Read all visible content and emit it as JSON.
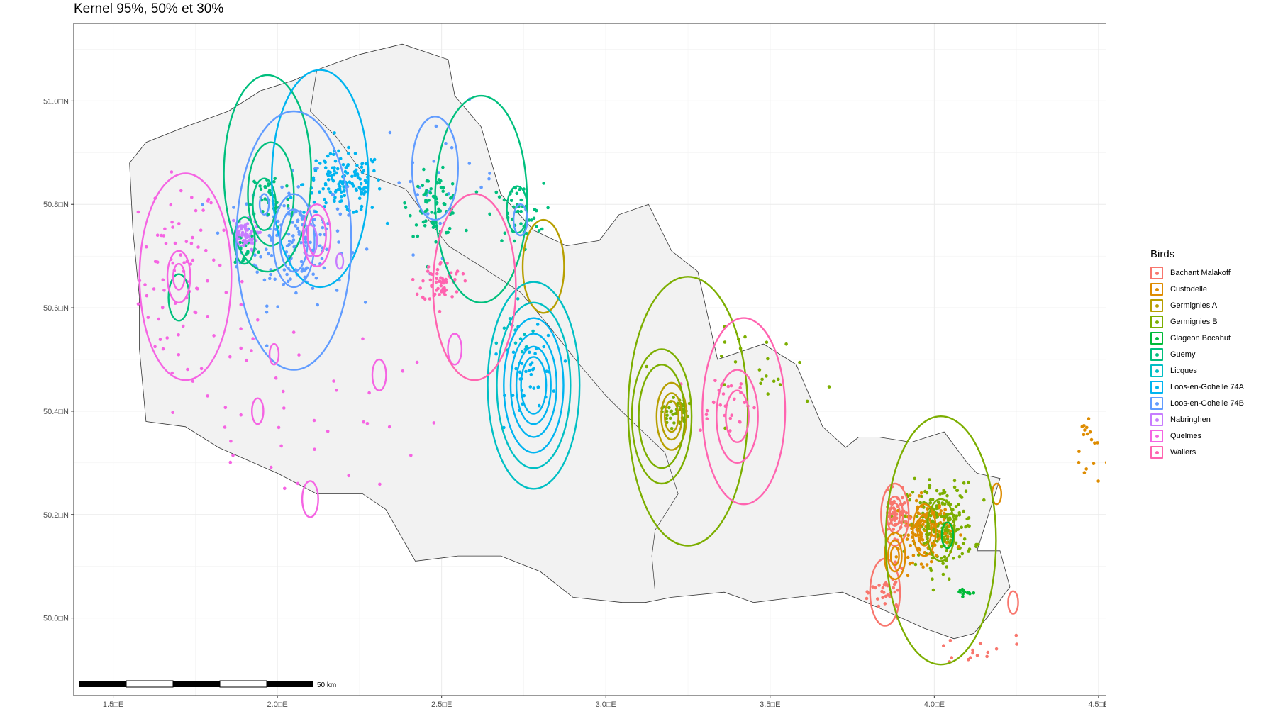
{
  "title": "Kernel 95%, 50% et 30%",
  "axes": {
    "x_ticks": [
      {
        "value": 1.5,
        "label": "1.5□E"
      },
      {
        "value": 2.0,
        "label": "2.0□E"
      },
      {
        "value": 2.5,
        "label": "2.5□E"
      },
      {
        "value": 3.0,
        "label": "3.0□E"
      },
      {
        "value": 3.5,
        "label": "3.5□E"
      },
      {
        "value": 4.0,
        "label": "4.0□E"
      },
      {
        "value": 4.5,
        "label": "4.5□E"
      }
    ],
    "y_ticks": [
      {
        "value": 50.0,
        "label": "50.0□N"
      },
      {
        "value": 50.2,
        "label": "50.2□N"
      },
      {
        "value": 50.4,
        "label": "50.4□N"
      },
      {
        "value": 50.6,
        "label": "50.6□N"
      },
      {
        "value": 50.8,
        "label": "50.8□N"
      },
      {
        "value": 51.0,
        "label": "51.0□N"
      }
    ],
    "xlim": [
      1.38,
      4.66
    ],
    "ylim": [
      49.85,
      51.15
    ],
    "grid": true
  },
  "legend": {
    "title": "Birds",
    "items": [
      {
        "name": "Bachant Malakoff",
        "color": "#F8766D"
      },
      {
        "name": "Custodelle",
        "color": "#DE8C00"
      },
      {
        "name": "Germignies A",
        "color": "#B79F00"
      },
      {
        "name": "Germignies B",
        "color": "#7CAE00"
      },
      {
        "name": "Glageon Bocahut",
        "color": "#00BA38"
      },
      {
        "name": "Guemy",
        "color": "#00BF7D"
      },
      {
        "name": "Licques",
        "color": "#00BFC4"
      },
      {
        "name": "Loos-en-Gohelle 74A",
        "color": "#00B4F0"
      },
      {
        "name": "Loos-en-Gohelle 74B",
        "color": "#619CFF"
      },
      {
        "name": "Nabringhen",
        "color": "#C77CFF"
      },
      {
        "name": "Quelmes",
        "color": "#F564E3"
      },
      {
        "name": "Wallers",
        "color": "#FF64B0"
      }
    ]
  },
  "scale_bar": {
    "label": "50 km"
  },
  "region_outline": [
    [
      1.55,
      50.88
    ],
    [
      1.6,
      50.92
    ],
    [
      1.72,
      50.95
    ],
    [
      1.85,
      50.98
    ],
    [
      1.95,
      51.02
    ],
    [
      2.05,
      51.04
    ],
    [
      2.12,
      51.06
    ],
    [
      2.25,
      51.09
    ],
    [
      2.38,
      51.11
    ],
    [
      2.52,
      51.08
    ],
    [
      2.54,
      51.01
    ],
    [
      2.62,
      50.95
    ],
    [
      2.68,
      50.82
    ],
    [
      2.78,
      50.75
    ],
    [
      2.88,
      50.72
    ],
    [
      2.98,
      50.73
    ],
    [
      3.04,
      50.78
    ],
    [
      3.13,
      50.8
    ],
    [
      3.2,
      50.71
    ],
    [
      3.28,
      50.67
    ],
    [
      3.34,
      50.5
    ],
    [
      3.48,
      50.53
    ],
    [
      3.58,
      50.49
    ],
    [
      3.66,
      50.37
    ],
    [
      3.73,
      50.33
    ],
    [
      3.77,
      50.35
    ],
    [
      3.83,
      50.35
    ],
    [
      3.93,
      50.34
    ],
    [
      4.03,
      50.36
    ],
    [
      4.1,
      50.3
    ],
    [
      4.13,
      50.28
    ],
    [
      4.2,
      50.27
    ],
    [
      4.16,
      50.19
    ],
    [
      4.13,
      50.13
    ],
    [
      4.2,
      50.13
    ],
    [
      4.23,
      50.06
    ],
    [
      4.16,
      50.0
    ],
    [
      4.12,
      49.97
    ],
    [
      4.06,
      49.96
    ],
    [
      3.97,
      49.98
    ],
    [
      3.83,
      50.02
    ],
    [
      3.72,
      50.05
    ],
    [
      3.58,
      50.04
    ],
    [
      3.45,
      50.03
    ],
    [
      3.36,
      50.05
    ],
    [
      3.2,
      50.04
    ],
    [
      3.12,
      50.03
    ],
    [
      3.05,
      50.03
    ],
    [
      2.9,
      50.04
    ],
    [
      2.8,
      50.09
    ],
    [
      2.68,
      50.12
    ],
    [
      2.55,
      50.12
    ],
    [
      2.42,
      50.11
    ],
    [
      2.33,
      50.21
    ],
    [
      2.26,
      50.24
    ],
    [
      2.12,
      50.24
    ],
    [
      2.0,
      50.28
    ],
    [
      1.82,
      50.33
    ],
    [
      1.72,
      50.37
    ],
    [
      1.6,
      50.38
    ],
    [
      1.58,
      50.52
    ],
    [
      1.58,
      50.62
    ],
    [
      1.56,
      50.75
    ],
    [
      1.55,
      50.88
    ]
  ],
  "inner_border": [
    [
      2.12,
      51.06
    ],
    [
      2.1,
      50.98
    ],
    [
      2.18,
      50.93
    ],
    [
      2.26,
      50.86
    ],
    [
      2.39,
      50.83
    ],
    [
      2.52,
      50.72
    ],
    [
      2.62,
      50.68
    ],
    [
      2.74,
      50.63
    ],
    [
      2.82,
      50.57
    ],
    [
      2.92,
      50.49
    ],
    [
      3.0,
      50.43
    ],
    [
      3.08,
      50.38
    ],
    [
      3.18,
      50.32
    ],
    [
      3.22,
      50.24
    ],
    [
      3.15,
      50.17
    ],
    [
      3.14,
      50.12
    ],
    [
      3.15,
      50.05
    ]
  ],
  "kernels": [
    {
      "bird": "Bachant Malakoff",
      "rings": [
        {
          "cx": 3.88,
          "cy": 50.2,
          "r": 0.06
        },
        {
          "cx": 3.88,
          "cy": 50.2,
          "r": 0.035
        },
        {
          "cx": 3.88,
          "cy": 50.2,
          "r": 0.022
        },
        {
          "cx": 3.85,
          "cy": 50.05,
          "r": 0.065
        },
        {
          "cx": 4.24,
          "cy": 50.03,
          "r": 0.022
        }
      ]
    },
    {
      "bird": "Custodelle",
      "rings": [
        {
          "cx": 3.88,
          "cy": 50.12,
          "r": 0.045
        },
        {
          "cx": 3.88,
          "cy": 50.12,
          "r": 0.03
        },
        {
          "cx": 3.88,
          "cy": 50.12,
          "r": 0.018
        },
        {
          "cx": 3.97,
          "cy": 50.17,
          "r": 0.05
        },
        {
          "cx": 3.97,
          "cy": 50.17,
          "r": 0.03
        },
        {
          "cx": 4.19,
          "cy": 50.24,
          "r": 0.02
        }
      ]
    },
    {
      "bird": "Germignies A",
      "rings": [
        {
          "cx": 3.2,
          "cy": 50.39,
          "r": 0.065
        },
        {
          "cx": 3.2,
          "cy": 50.39,
          "r": 0.045
        },
        {
          "cx": 3.2,
          "cy": 50.39,
          "r": 0.03
        },
        {
          "cx": 2.81,
          "cy": 50.68,
          "r": 0.09
        }
      ]
    },
    {
      "bird": "Germignies B",
      "rings": [
        {
          "cx": 3.25,
          "cy": 50.4,
          "r": 0.26
        },
        {
          "cx": 3.17,
          "cy": 50.39,
          "r": 0.13
        },
        {
          "cx": 3.17,
          "cy": 50.39,
          "r": 0.1
        },
        {
          "cx": 4.02,
          "cy": 50.15,
          "r": 0.24
        },
        {
          "cx": 4.02,
          "cy": 50.17,
          "r": 0.06
        }
      ]
    },
    {
      "bird": "Glageon Bocahut",
      "rings": [
        {
          "cx": 4.04,
          "cy": 50.16,
          "r": 0.025
        }
      ]
    },
    {
      "bird": "Guemy",
      "rings": [
        {
          "cx": 1.97,
          "cy": 50.86,
          "r": 0.19
        },
        {
          "cx": 1.98,
          "cy": 50.82,
          "r": 0.1
        },
        {
          "cx": 1.96,
          "cy": 50.8,
          "r": 0.05
        },
        {
          "cx": 2.62,
          "cy": 50.81,
          "r": 0.2
        },
        {
          "cx": 2.73,
          "cy": 50.79,
          "r": 0.045
        },
        {
          "cx": 1.7,
          "cy": 50.62,
          "r": 0.045
        },
        {
          "cx": 1.9,
          "cy": 50.73,
          "r": 0.045
        }
      ]
    },
    {
      "bird": "Licques",
      "rings": [
        {
          "cx": 2.78,
          "cy": 50.45,
          "r": 0.2
        },
        {
          "cx": 2.78,
          "cy": 50.45,
          "r": 0.16
        }
      ]
    },
    {
      "bird": "Loos-en-Gohelle 74A",
      "rings": [
        {
          "cx": 2.78,
          "cy": 50.45,
          "r": 0.13
        },
        {
          "cx": 2.78,
          "cy": 50.45,
          "r": 0.1
        },
        {
          "cx": 2.78,
          "cy": 50.45,
          "r": 0.075
        },
        {
          "cx": 2.78,
          "cy": 50.45,
          "r": 0.055
        },
        {
          "cx": 2.13,
          "cy": 50.85,
          "r": 0.21
        }
      ]
    },
    {
      "bird": "Loos-en-Gohelle 74B",
      "rings": [
        {
          "cx": 2.05,
          "cy": 50.73,
          "r": 0.25
        },
        {
          "cx": 2.05,
          "cy": 50.73,
          "r": 0.09
        },
        {
          "cx": 2.05,
          "cy": 50.73,
          "r": 0.06
        },
        {
          "cx": 2.48,
          "cy": 50.87,
          "r": 0.1
        },
        {
          "cx": 2.74,
          "cy": 50.77,
          "r": 0.03
        },
        {
          "cx": 1.96,
          "cy": 50.8,
          "r": 0.02
        }
      ]
    },
    {
      "bird": "Nabringhen",
      "rings": [
        {
          "cx": 1.89,
          "cy": 50.74,
          "r": 0.02
        },
        {
          "cx": 2.19,
          "cy": 50.69,
          "r": 0.015
        },
        {
          "cx": 2.1,
          "cy": 50.73,
          "r": 0.03
        }
      ]
    },
    {
      "bird": "Quelmes",
      "rings": [
        {
          "cx": 1.72,
          "cy": 50.66,
          "r": 0.2
        },
        {
          "cx": 1.7,
          "cy": 50.66,
          "r": 0.05
        },
        {
          "cx": 1.7,
          "cy": 50.66,
          "r": 0.025
        },
        {
          "cx": 2.12,
          "cy": 50.74,
          "r": 0.06
        },
        {
          "cx": 2.12,
          "cy": 50.74,
          "r": 0.04
        },
        {
          "cx": 1.99,
          "cy": 50.51,
          "r": 0.02
        },
        {
          "cx": 2.31,
          "cy": 50.47,
          "r": 0.03
        },
        {
          "cx": 1.94,
          "cy": 50.4,
          "r": 0.025
        },
        {
          "cx": 2.1,
          "cy": 50.23,
          "r": 0.035
        },
        {
          "cx": 2.54,
          "cy": 50.52,
          "r": 0.03
        }
      ]
    },
    {
      "bird": "Wallers",
      "rings": [
        {
          "cx": 2.6,
          "cy": 50.64,
          "r": 0.18
        },
        {
          "cx": 3.42,
          "cy": 50.4,
          "r": 0.18
        },
        {
          "cx": 3.4,
          "cy": 50.39,
          "r": 0.09
        },
        {
          "cx": 3.4,
          "cy": 50.39,
          "r": 0.05
        }
      ]
    }
  ],
  "clusters": [
    {
      "bird": "Quelmes",
      "cx": 1.7,
      "cy": 50.66,
      "sx": 0.06,
      "sy": 0.1,
      "n": 70
    },
    {
      "bird": "Quelmes",
      "cx": 1.9,
      "cy": 50.45,
      "sx": 0.1,
      "sy": 0.12,
      "n": 30
    },
    {
      "bird": "Quelmes",
      "cx": 2.25,
      "cy": 50.4,
      "sx": 0.12,
      "sy": 0.1,
      "n": 18
    },
    {
      "bird": "Loos-en-Gohelle 74B",
      "cx": 2.05,
      "cy": 50.73,
      "sx": 0.08,
      "sy": 0.06,
      "n": 150
    },
    {
      "bird": "Loos-en-Gohelle 74B",
      "cx": 2.5,
      "cy": 50.85,
      "sx": 0.09,
      "sy": 0.07,
      "n": 25
    },
    {
      "bird": "Loos-en-Gohelle 74A",
      "cx": 2.2,
      "cy": 50.84,
      "sx": 0.06,
      "sy": 0.03,
      "n": 140
    },
    {
      "bird": "Loos-en-Gohelle 74A",
      "cx": 2.78,
      "cy": 50.47,
      "sx": 0.04,
      "sy": 0.04,
      "n": 40
    },
    {
      "bird": "Guemy",
      "cx": 2.48,
      "cy": 50.8,
      "sx": 0.04,
      "sy": 0.03,
      "n": 80
    },
    {
      "bird": "Guemy",
      "cx": 2.73,
      "cy": 50.78,
      "sx": 0.04,
      "sy": 0.03,
      "n": 45
    },
    {
      "bird": "Guemy",
      "cx": 1.98,
      "cy": 50.81,
      "sx": 0.03,
      "sy": 0.03,
      "n": 40
    },
    {
      "bird": "Guemy",
      "cx": 1.9,
      "cy": 50.72,
      "sx": 0.02,
      "sy": 0.02,
      "n": 20
    },
    {
      "bird": "Wallers",
      "cx": 2.5,
      "cy": 50.65,
      "sx": 0.03,
      "sy": 0.02,
      "n": 60
    },
    {
      "bird": "Wallers",
      "cx": 3.36,
      "cy": 50.42,
      "sx": 0.05,
      "sy": 0.03,
      "n": 30
    },
    {
      "bird": "Nabringhen",
      "cx": 1.9,
      "cy": 50.74,
      "sx": 0.02,
      "sy": 0.015,
      "n": 45
    },
    {
      "bird": "Germignies B",
      "cx": 3.21,
      "cy": 50.4,
      "sx": 0.02,
      "sy": 0.015,
      "n": 40
    },
    {
      "bird": "Germignies B",
      "cx": 4.02,
      "cy": 50.18,
      "sx": 0.05,
      "sy": 0.04,
      "n": 220
    },
    {
      "bird": "Germignies B",
      "cx": 3.5,
      "cy": 50.48,
      "sx": 0.1,
      "sy": 0.04,
      "n": 25
    },
    {
      "bird": "Custodelle",
      "cx": 3.97,
      "cy": 50.17,
      "sx": 0.04,
      "sy": 0.03,
      "n": 120
    },
    {
      "bird": "Custodelle",
      "cx": 4.47,
      "cy": 50.33,
      "sx": 0.02,
      "sy": 0.04,
      "n": 18
    },
    {
      "bird": "Bachant Malakoff",
      "cx": 3.88,
      "cy": 50.2,
      "sx": 0.02,
      "sy": 0.02,
      "n": 50
    },
    {
      "bird": "Bachant Malakoff",
      "cx": 3.86,
      "cy": 50.05,
      "sx": 0.025,
      "sy": 0.02,
      "n": 35
    },
    {
      "bird": "Bachant Malakoff",
      "cx": 4.1,
      "cy": 49.93,
      "sx": 0.09,
      "sy": 0.02,
      "n": 15
    },
    {
      "bird": "Glageon Bocahut",
      "cx": 4.09,
      "cy": 50.05,
      "sx": 0.01,
      "sy": 0.004,
      "n": 12
    },
    {
      "bird": "Licques",
      "cx": 2.72,
      "cy": 50.54,
      "sx": 0.04,
      "sy": 0.03,
      "n": 15
    }
  ]
}
